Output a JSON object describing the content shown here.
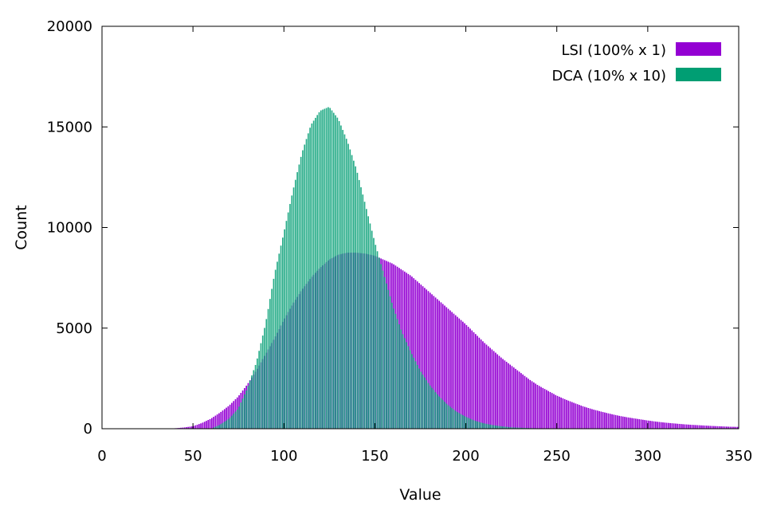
{
  "chart_data": {
    "type": "bar",
    "xlabel": "Value",
    "ylabel": "Count",
    "xlim": [
      0,
      350
    ],
    "ylim": [
      0,
      20000
    ],
    "x_ticks": [
      0,
      50,
      100,
      150,
      200,
      250,
      300,
      350
    ],
    "y_ticks": [
      0,
      5000,
      10000,
      15000,
      20000
    ],
    "grid": false,
    "legend_position": "top-right",
    "bin_width": 1,
    "series": [
      {
        "name": "LSI (100% x 1)",
        "color": "#9400d3",
        "x": [
          40,
          45,
          50,
          55,
          60,
          65,
          70,
          75,
          80,
          85,
          90,
          95,
          100,
          105,
          110,
          115,
          120,
          125,
          130,
          135,
          140,
          145,
          150,
          155,
          160,
          165,
          170,
          175,
          180,
          185,
          190,
          195,
          200,
          205,
          210,
          215,
          220,
          225,
          230,
          235,
          240,
          245,
          250,
          255,
          260,
          265,
          270,
          275,
          280,
          285,
          290,
          295,
          300,
          305,
          310,
          315,
          320,
          325,
          330,
          335,
          340,
          345,
          350
        ],
        "values": [
          20,
          60,
          120,
          280,
          500,
          800,
          1150,
          1600,
          2200,
          2900,
          3700,
          4500,
          5400,
          6200,
          6900,
          7500,
          8000,
          8400,
          8650,
          8750,
          8750,
          8700,
          8600,
          8400,
          8200,
          7900,
          7600,
          7200,
          6800,
          6400,
          6000,
          5600,
          5200,
          4750,
          4300,
          3900,
          3500,
          3150,
          2800,
          2450,
          2150,
          1900,
          1650,
          1450,
          1270,
          1100,
          960,
          840,
          730,
          630,
          550,
          480,
          410,
          350,
          300,
          260,
          220,
          190,
          165,
          140,
          120,
          100,
          90
        ]
      },
      {
        "name": "DCA (10% x 10)",
        "color": "#009e73",
        "x": [
          60,
          65,
          70,
          75,
          80,
          85,
          90,
          95,
          100,
          105,
          110,
          115,
          120,
          125,
          130,
          135,
          140,
          145,
          150,
          155,
          160,
          165,
          170,
          175,
          180,
          185,
          190,
          195,
          200,
          205,
          210,
          215,
          220,
          225,
          230,
          235,
          240,
          245,
          250,
          255,
          260
        ],
        "values": [
          0,
          200,
          500,
          1000,
          2000,
          3300,
          5200,
          7700,
          9700,
          11800,
          13700,
          15100,
          15800,
          16000,
          15400,
          14300,
          12900,
          11100,
          9300,
          7700,
          6100,
          4800,
          3800,
          2900,
          2200,
          1650,
          1200,
          850,
          600,
          400,
          270,
          180,
          120,
          70,
          50,
          30,
          20,
          10,
          0,
          0,
          0
        ]
      }
    ]
  }
}
